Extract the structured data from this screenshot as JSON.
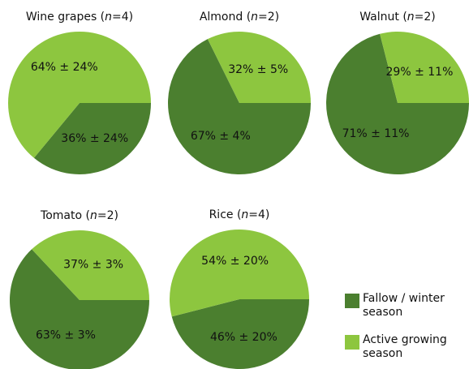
{
  "chart_data": [
    {
      "type": "pie",
      "title": "Wine grapes (n=4)",
      "categories": [
        "Fallow / winter season",
        "Active growing season"
      ],
      "values": [
        36,
        64
      ],
      "value_labels": [
        "36% ± 24%",
        "64% ± 24%"
      ],
      "colors": [
        "#4b7f2f",
        "#8dc63f"
      ]
    },
    {
      "type": "pie",
      "title": "Almond (n=2)",
      "categories": [
        "Fallow / winter season",
        "Active growing season"
      ],
      "values": [
        67,
        32
      ],
      "value_labels": [
        "67% ± 4%",
        "32% ± 5%"
      ],
      "colors": [
        "#4b7f2f",
        "#8dc63f"
      ]
    },
    {
      "type": "pie",
      "title": "Walnut (n=2)",
      "categories": [
        "Fallow / winter season",
        "Active growing season"
      ],
      "values": [
        71,
        29
      ],
      "value_labels": [
        "71% ± 11%",
        "29% ± 11%"
      ],
      "colors": [
        "#4b7f2f",
        "#8dc63f"
      ]
    },
    {
      "type": "pie",
      "title": "Tomato (n=2)",
      "categories": [
        "Fallow / winter season",
        "Active growing season"
      ],
      "values": [
        63,
        37
      ],
      "value_labels": [
        "63% ± 3%",
        "37% ± 3%"
      ],
      "colors": [
        "#4b7f2f",
        "#8dc63f"
      ]
    },
    {
      "type": "pie",
      "title": "Rice (n=4)",
      "categories": [
        "Fallow / winter season",
        "Active growing season"
      ],
      "values": [
        46,
        54
      ],
      "value_labels": [
        "46% ± 20%",
        "54% ± 20%"
      ],
      "colors": [
        "#4b7f2f",
        "#8dc63f"
      ]
    }
  ]
}
